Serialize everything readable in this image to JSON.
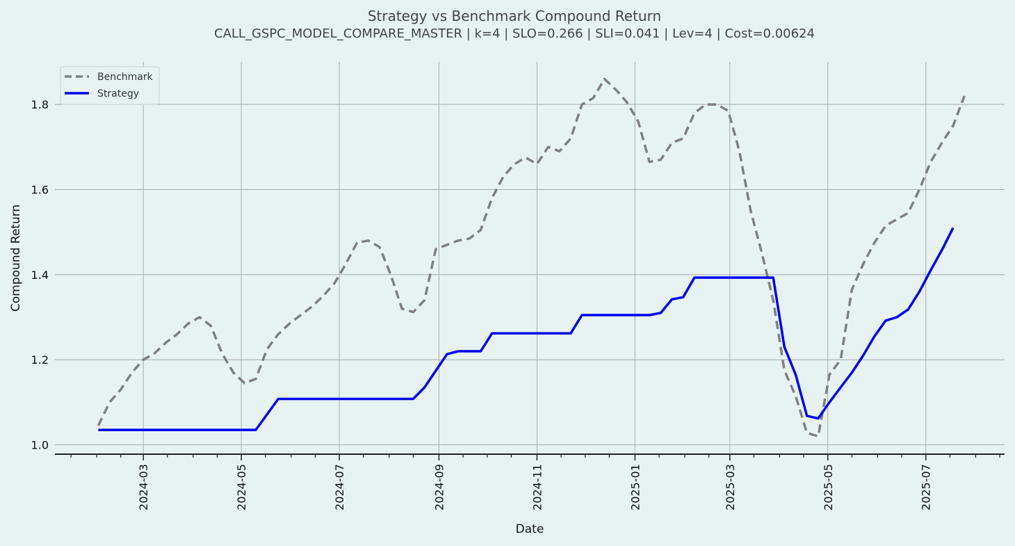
{
  "chart_data": {
    "type": "line",
    "title": "Strategy vs Benchmark Compound Return",
    "subtitle": "CALL_GSPC_MODEL_COMPARE_MASTER | k=4 | SLO=0.266 | SLI=0.041 | Lev=4 | Cost=0.00624",
    "xlabel": "Date",
    "ylabel": "Compound Return",
    "xlim": [
      "2024-01-06",
      "2025-08-19"
    ],
    "ylim": [
      0.978,
      1.9
    ],
    "yticks": [
      1.0,
      1.2,
      1.4,
      1.6,
      1.8
    ],
    "ytick_labels": [
      "1.0",
      "1.2",
      "1.4",
      "1.6",
      "1.8"
    ],
    "xtick_labels": [
      "2024-03",
      "2024-05",
      "2024-07",
      "2024-09",
      "2024-11",
      "2025-01",
      "2025-03",
      "2025-05",
      "2025-07"
    ],
    "xticks_major": [
      "2024-03-01",
      "2024-05-01",
      "2024-07-01",
      "2024-09-01",
      "2024-11-01",
      "2025-01-01",
      "2025-03-01",
      "2025-05-01",
      "2025-07-01"
    ],
    "xticks_minor": [
      "2024-01-16",
      "2024-02-01",
      "2024-02-16",
      "2024-03-16",
      "2024-04-01",
      "2024-04-16",
      "2024-05-16",
      "2024-06-01",
      "2024-06-16",
      "2024-07-16",
      "2024-08-01",
      "2024-08-16",
      "2024-09-16",
      "2024-10-01",
      "2024-10-16",
      "2024-11-16",
      "2024-12-01",
      "2024-12-16",
      "2025-01-16",
      "2025-02-01",
      "2025-02-16",
      "2025-03-16",
      "2025-04-01",
      "2025-04-16",
      "2025-05-16",
      "2025-06-01",
      "2025-06-16",
      "2025-07-16",
      "2025-08-01",
      "2025-08-16"
    ],
    "grid": true,
    "legend_position": "top-left",
    "series": [
      {
        "name": "Benchmark",
        "color": "#808080",
        "style": "dashed",
        "points": [
          [
            "2024-02-02",
            1.045
          ],
          [
            "2024-02-09",
            1.1
          ],
          [
            "2024-02-16",
            1.13
          ],
          [
            "2024-02-23",
            1.17
          ],
          [
            "2024-03-01",
            1.2
          ],
          [
            "2024-03-08",
            1.215
          ],
          [
            "2024-03-15",
            1.24
          ],
          [
            "2024-03-22",
            1.26
          ],
          [
            "2024-03-29",
            1.285
          ],
          [
            "2024-04-05",
            1.3
          ],
          [
            "2024-04-12",
            1.28
          ],
          [
            "2024-04-19",
            1.215
          ],
          [
            "2024-04-26",
            1.17
          ],
          [
            "2024-05-03",
            1.145
          ],
          [
            "2024-05-10",
            1.155
          ],
          [
            "2024-05-17",
            1.225
          ],
          [
            "2024-05-24",
            1.26
          ],
          [
            "2024-05-31",
            1.285
          ],
          [
            "2024-06-07",
            1.305
          ],
          [
            "2024-06-14",
            1.325
          ],
          [
            "2024-06-21",
            1.35
          ],
          [
            "2024-06-28",
            1.38
          ],
          [
            "2024-07-05",
            1.425
          ],
          [
            "2024-07-12",
            1.475
          ],
          [
            "2024-07-19",
            1.48
          ],
          [
            "2024-07-26",
            1.465
          ],
          [
            "2024-08-02",
            1.4
          ],
          [
            "2024-08-09",
            1.32
          ],
          [
            "2024-08-16",
            1.312
          ],
          [
            "2024-08-23",
            1.34
          ],
          [
            "2024-08-30",
            1.46
          ],
          [
            "2024-09-06",
            1.47
          ],
          [
            "2024-09-13",
            1.48
          ],
          [
            "2024-09-20",
            1.485
          ],
          [
            "2024-09-27",
            1.505
          ],
          [
            "2024-10-04",
            1.58
          ],
          [
            "2024-10-11",
            1.63
          ],
          [
            "2024-10-18",
            1.66
          ],
          [
            "2024-10-25",
            1.675
          ],
          [
            "2024-11-01",
            1.66
          ],
          [
            "2024-11-08",
            1.7
          ],
          [
            "2024-11-15",
            1.69
          ],
          [
            "2024-11-22",
            1.72
          ],
          [
            "2024-11-29",
            1.8
          ],
          [
            "2024-12-06",
            1.815
          ],
          [
            "2024-12-13",
            1.86
          ],
          [
            "2024-12-20",
            1.835
          ],
          [
            "2024-12-27",
            1.805
          ],
          [
            "2025-01-03",
            1.76
          ],
          [
            "2025-01-10",
            1.665
          ],
          [
            "2025-01-17",
            1.67
          ],
          [
            "2025-01-24",
            1.71
          ],
          [
            "2025-01-31",
            1.72
          ],
          [
            "2025-02-07",
            1.78
          ],
          [
            "2025-02-14",
            1.8
          ],
          [
            "2025-02-21",
            1.8
          ],
          [
            "2025-02-28",
            1.785
          ],
          [
            "2025-03-07",
            1.69
          ],
          [
            "2025-03-14",
            1.55
          ],
          [
            "2025-03-21",
            1.45
          ],
          [
            "2025-03-28",
            1.34
          ],
          [
            "2025-04-04",
            1.175
          ],
          [
            "2025-04-11",
            1.115
          ],
          [
            "2025-04-18",
            1.028
          ],
          [
            "2025-04-25",
            1.02
          ],
          [
            "2025-05-02",
            1.165
          ],
          [
            "2025-05-09",
            1.2
          ],
          [
            "2025-05-16",
            1.365
          ],
          [
            "2025-05-23",
            1.425
          ],
          [
            "2025-05-30",
            1.475
          ],
          [
            "2025-06-06",
            1.515
          ],
          [
            "2025-06-13",
            1.53
          ],
          [
            "2025-06-20",
            1.545
          ],
          [
            "2025-06-27",
            1.6
          ],
          [
            "2025-07-04",
            1.665
          ],
          [
            "2025-07-11",
            1.71
          ],
          [
            "2025-07-18",
            1.75
          ],
          [
            "2025-07-25",
            1.82
          ]
        ]
      },
      {
        "name": "Strategy",
        "color": "#0000ee",
        "style": "solid",
        "points": [
          [
            "2024-02-02",
            1.035
          ],
          [
            "2024-05-10",
            1.035
          ],
          [
            "2024-05-24",
            1.108
          ],
          [
            "2024-08-16",
            1.108
          ],
          [
            "2024-08-23",
            1.135
          ],
          [
            "2024-09-06",
            1.213
          ],
          [
            "2024-09-13",
            1.22
          ],
          [
            "2024-09-27",
            1.22
          ],
          [
            "2024-10-04",
            1.262
          ],
          [
            "2024-11-22",
            1.262
          ],
          [
            "2024-11-29",
            1.305
          ],
          [
            "2025-01-10",
            1.305
          ],
          [
            "2025-01-17",
            1.31
          ],
          [
            "2025-01-24",
            1.342
          ],
          [
            "2025-01-31",
            1.347
          ],
          [
            "2025-02-07",
            1.393
          ],
          [
            "2025-03-28",
            1.393
          ],
          [
            "2025-04-04",
            1.23
          ],
          [
            "2025-04-11",
            1.165
          ],
          [
            "2025-04-18",
            1.068
          ],
          [
            "2025-04-25",
            1.062
          ],
          [
            "2025-05-02",
            1.1
          ],
          [
            "2025-05-09",
            1.135
          ],
          [
            "2025-05-16",
            1.17
          ],
          [
            "2025-05-23",
            1.21
          ],
          [
            "2025-05-30",
            1.255
          ],
          [
            "2025-06-06",
            1.292
          ],
          [
            "2025-06-13",
            1.3
          ],
          [
            "2025-06-20",
            1.318
          ],
          [
            "2025-06-27",
            1.36
          ],
          [
            "2025-07-04",
            1.41
          ],
          [
            "2025-07-11",
            1.458
          ],
          [
            "2025-07-18",
            1.51
          ]
        ]
      }
    ]
  }
}
